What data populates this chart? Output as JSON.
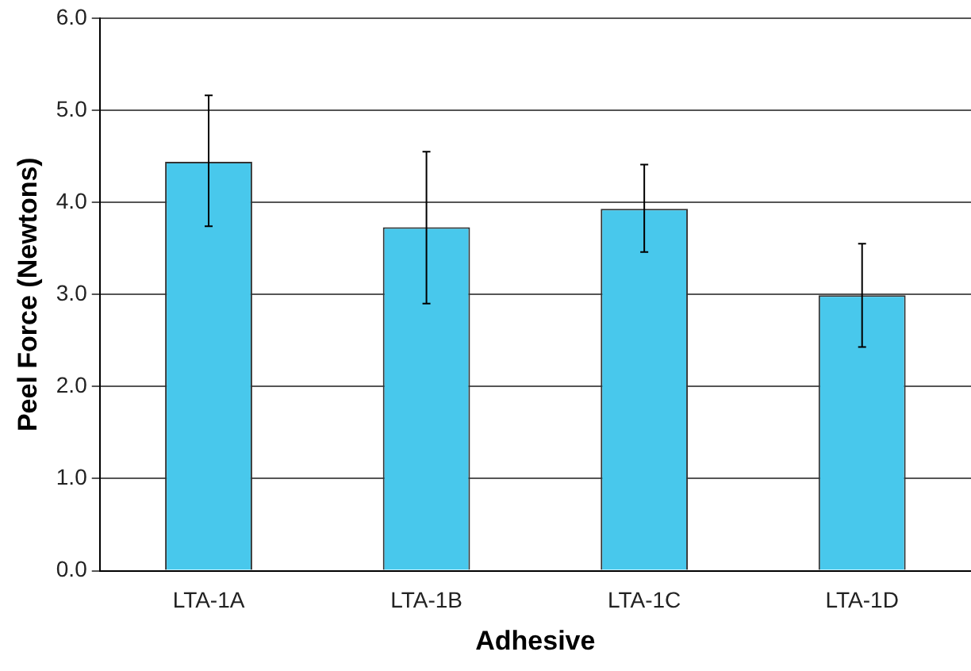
{
  "chart_data": {
    "type": "bar",
    "xlabel": "Adhesive",
    "ylabel": "Peel Force (Newtons)",
    "categories": [
      "LTA-1A",
      "LTA-1B",
      "LTA-1C",
      "LTA-1D"
    ],
    "values": [
      4.44,
      3.73,
      3.93,
      2.99
    ],
    "errors": [
      [
        3.74,
        5.16
      ],
      [
        2.9,
        4.55
      ],
      [
        3.46,
        4.41
      ],
      [
        2.43,
        3.55
      ]
    ],
    "color": "#48c8ec",
    "ylim": [
      0,
      6
    ],
    "yticks": [
      {
        "value": 0,
        "label": "0.0"
      },
      {
        "value": 1,
        "label": "1.0"
      },
      {
        "value": 2,
        "label": "2.0"
      },
      {
        "value": 3,
        "label": "3.0"
      },
      {
        "value": 4,
        "label": "4.0"
      },
      {
        "value": 5,
        "label": "5.0"
      },
      {
        "value": 6,
        "label": "6.0"
      }
    ],
    "grid": "y",
    "legend": false
  }
}
